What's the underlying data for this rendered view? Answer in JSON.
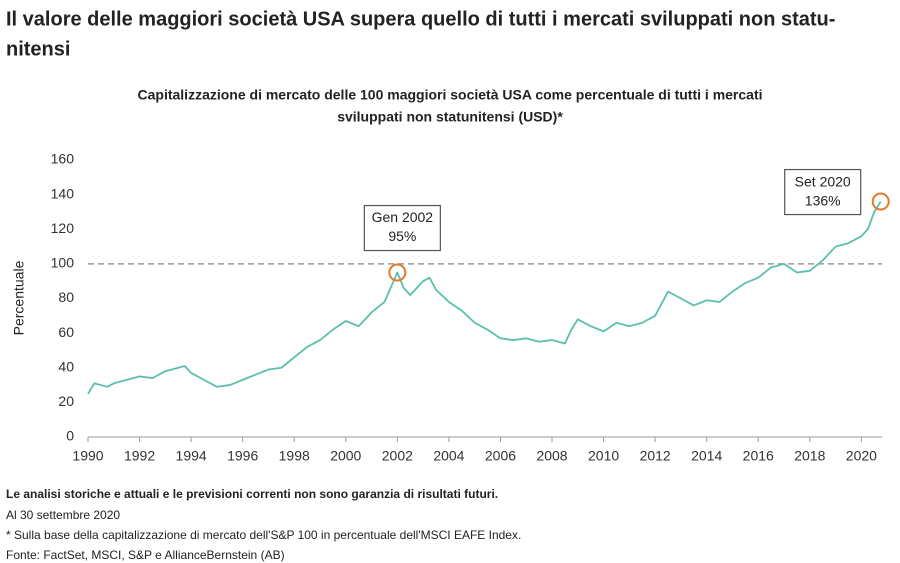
{
  "chart_data": {
    "type": "line",
    "title_lines": [
      "Il valore delle maggiori società USA supera quello di tutti i mercati sviluppati non statu-",
      "nitensi"
    ],
    "subtitle_lines": [
      "Capitalizzazione di mercato delle 100 maggiori società USA come percentuale di tutti i mercati",
      "sviluppati non statunitensi (USD)*"
    ],
    "y_label": "Percentuale",
    "x": [
      1990,
      1990.25,
      1990.5,
      1990.75,
      1991,
      1991.5,
      1992,
      1992.5,
      1993,
      1993.5,
      1993.75,
      1994,
      1994.5,
      1995,
      1995.5,
      1996,
      1996.5,
      1997,
      1997.5,
      1998,
      1998.5,
      1999,
      1999.5,
      2000,
      2000.5,
      2001,
      2001.5,
      2002,
      2002.25,
      2002.5,
      2002.75,
      2003,
      2003.25,
      2003.5,
      2004,
      2004.5,
      2005,
      2005.5,
      2006,
      2006.5,
      2007,
      2007.5,
      2008,
      2008.5,
      2008.75,
      2009,
      2009.5,
      2010,
      2010.5,
      2011,
      2011.5,
      2012,
      2012.5,
      2013,
      2013.5,
      2014,
      2014.5,
      2015,
      2015.5,
      2016,
      2016.5,
      2017,
      2017.5,
      2018,
      2018.5,
      2019,
      2019.5,
      2020,
      2020.25,
      2020.5,
      2020.75
    ],
    "series": [
      {
        "color": "#5cbfae",
        "values": [
          25,
          31,
          30,
          29,
          31,
          33,
          35,
          34,
          38,
          40,
          41,
          37,
          33,
          29,
          30,
          33,
          36,
          39,
          40,
          46,
          52,
          56,
          62,
          67,
          64,
          72,
          78,
          95,
          86,
          82,
          86,
          90,
          92,
          85,
          78,
          73,
          66,
          62,
          57,
          56,
          57,
          55,
          56,
          54,
          62,
          68,
          64,
          61,
          66,
          64,
          66,
          70,
          84,
          80,
          76,
          79,
          78,
          84,
          89,
          92,
          98,
          100,
          95,
          96,
          102,
          110,
          112,
          116,
          120,
          130,
          136
        ]
      }
    ],
    "xlim": [
      1990,
      2020.8
    ],
    "ylim": [
      0,
      160
    ],
    "xticks": [
      1990,
      1992,
      1994,
      1996,
      1998,
      2000,
      2002,
      2004,
      2006,
      2008,
      2010,
      2012,
      2014,
      2016,
      2018,
      2020
    ],
    "yticks": [
      0,
      20,
      40,
      60,
      80,
      100,
      120,
      140,
      160
    ],
    "reference_line": 100,
    "annotations": [
      {
        "x": 2002,
        "y": 95,
        "lines": [
          "Gen 2002",
          "95%"
        ]
      },
      {
        "x": 2020.75,
        "y": 136,
        "lines": [
          "Set 2020",
          "136%"
        ]
      }
    ],
    "marker_color": "#e07b2a",
    "footnotes": [
      "Le analisi storiche e attuali e le previsioni correnti non sono garanzia di risultati futuri.",
      "Al 30 settembre 2020",
      "* Sulla base della capitalizzazione di mercato dell'S&P 100 in percentuale dell'MSCI EAFE Index.",
      "Fonte: FactSet, MSCI, S&P e AllianceBernstein (AB)"
    ]
  }
}
